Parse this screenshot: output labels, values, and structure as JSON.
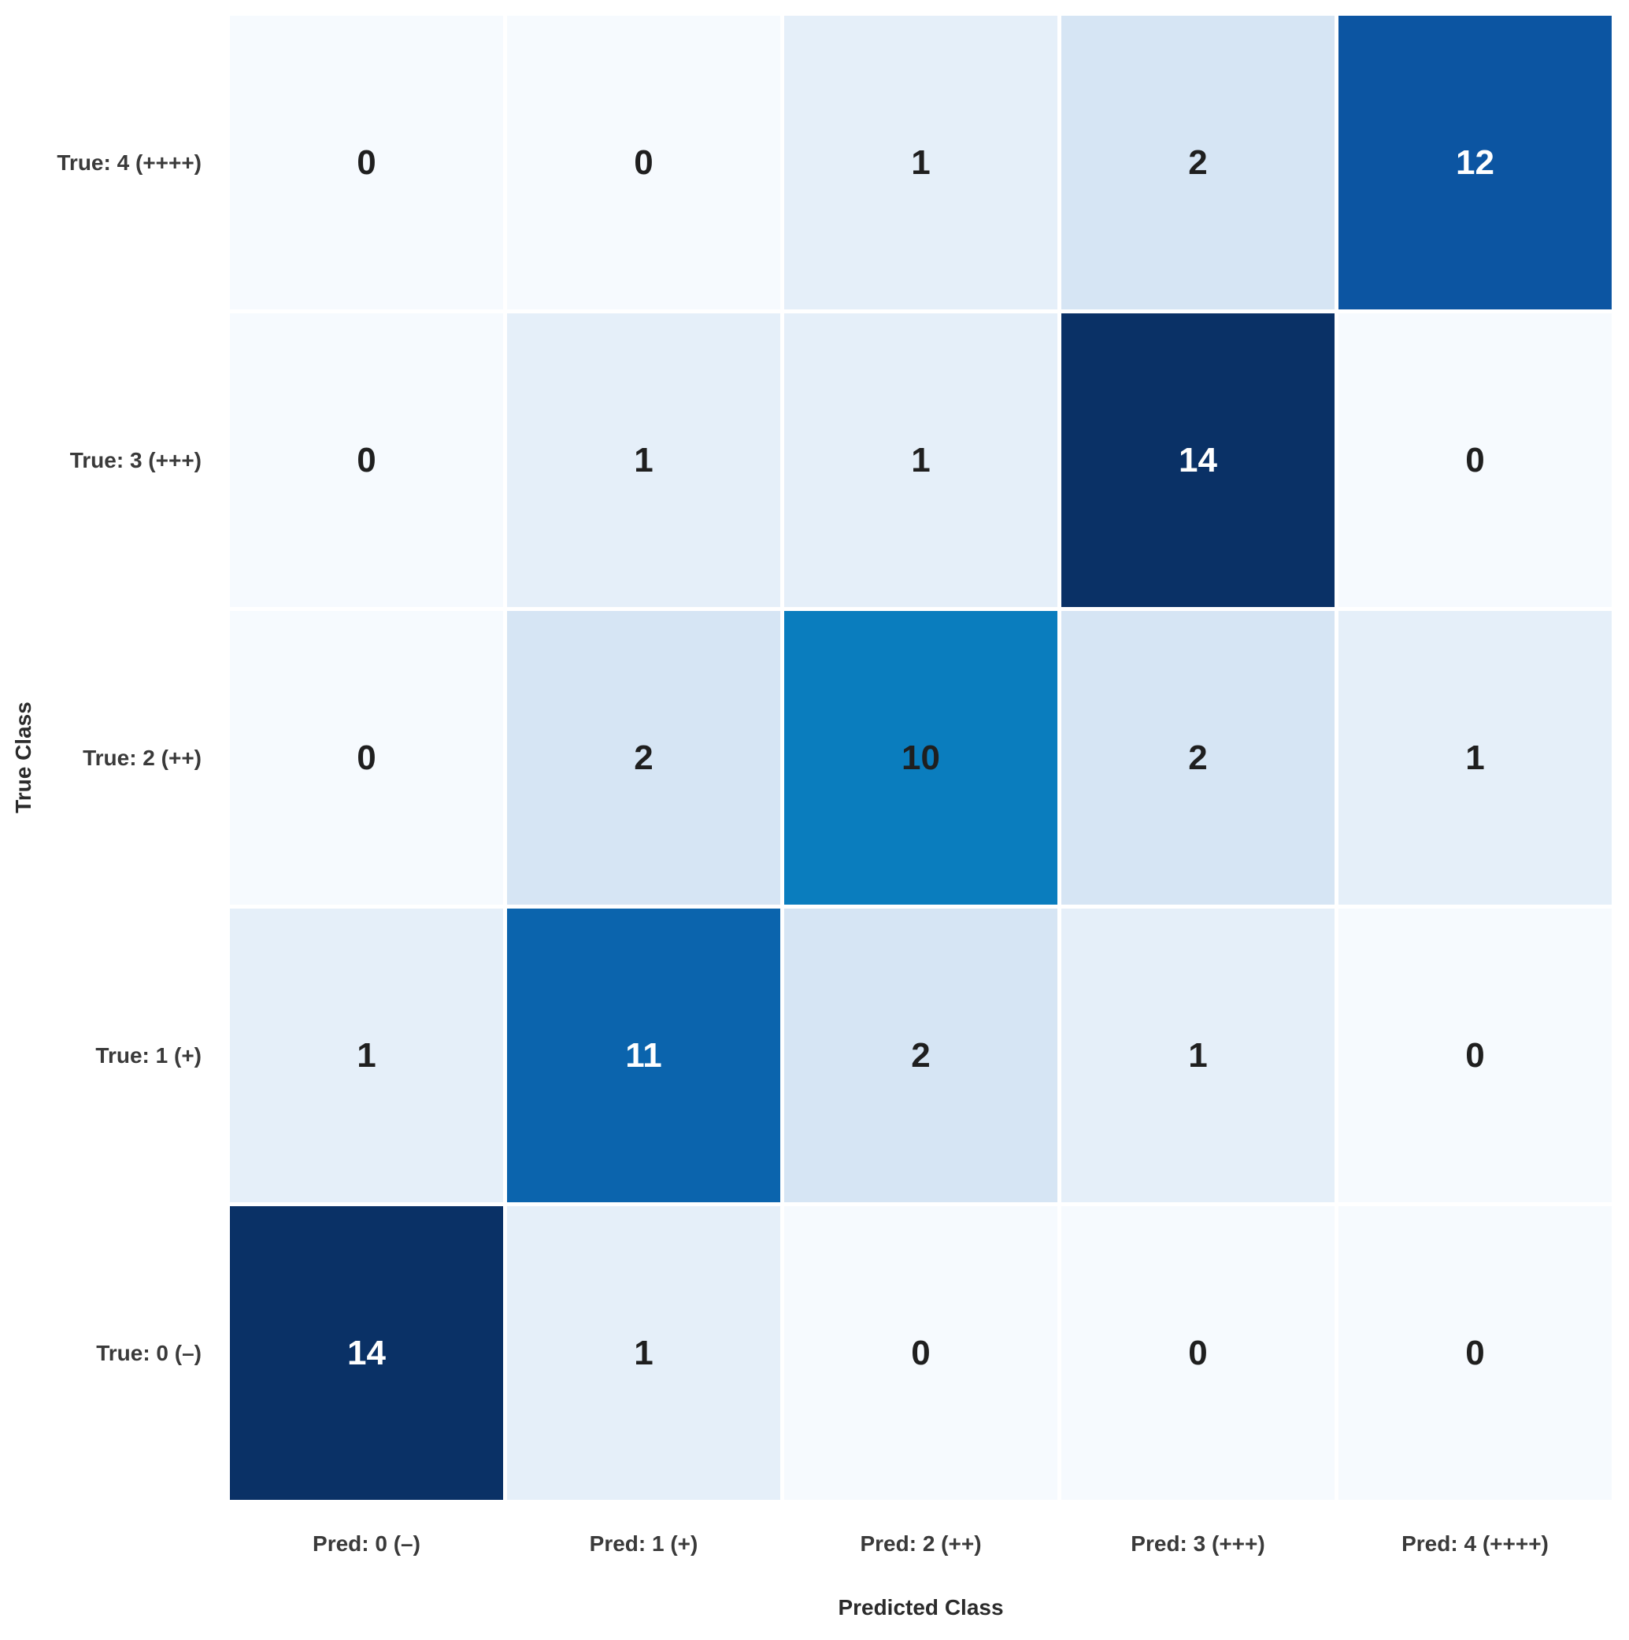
{
  "figure": {
    "background": "#ffffff"
  },
  "chart_data": {
    "type": "heatmap",
    "title": "",
    "xlabel": "Predicted Class",
    "ylabel": "True Class",
    "x_categories": [
      "Pred: 0 (–)",
      "Pred: 1 (+)",
      "Pred: 2 (++)",
      "Pred: 3 (+++)",
      "Pred: 4 (++++)"
    ],
    "y_categories": [
      "True: 4 (++++)",
      "True: 3 (+++)",
      "True: 2 (++)",
      "True: 1 (+)",
      "True: 0 (–)"
    ],
    "rows": [
      [
        0,
        0,
        1,
        2,
        12
      ],
      [
        0,
        1,
        1,
        14,
        0
      ],
      [
        0,
        2,
        10,
        2,
        1
      ],
      [
        1,
        11,
        2,
        1,
        0
      ],
      [
        14,
        1,
        0,
        0,
        0
      ]
    ],
    "colormap": "Blues",
    "value_range": [
      0,
      14
    ],
    "legend": "none",
    "grid": "off",
    "cell_colors": {
      "0": "#f6fafe",
      "1": "#e5eff9",
      "2": "#d6e5f4",
      "10": "#0a7dbe",
      "11": "#0b64ad",
      "12": "#0c55a2",
      "14": "#0a3166"
    },
    "light_text_values": [
      11,
      12,
      14
    ],
    "dark_text_color": "#1f1f1f",
    "light_text_color": "#ffffff",
    "tick_label_color": "#3a3a3a",
    "axis_label_color": "#2b2b2b"
  }
}
